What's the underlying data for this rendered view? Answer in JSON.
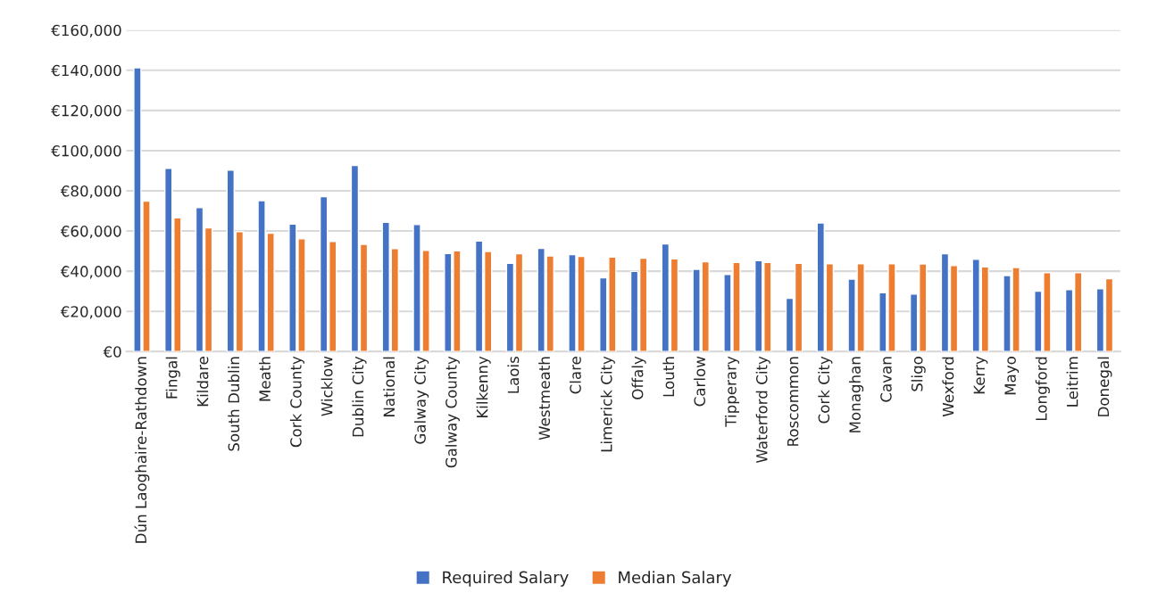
{
  "chart_data": {
    "type": "bar",
    "categories": [
      "Dún Laoghaire-Rathdown",
      "Fingal",
      "Kildare",
      "South Dublin",
      "Meath",
      "Cork County",
      "Wicklow",
      "Dublin City",
      "National",
      "Galway City",
      "Galway County",
      "Kilkenny",
      "Laois",
      "Westmeath",
      "Clare",
      "Limerick City",
      "Offaly",
      "Louth",
      "Carlow",
      "Tipperary",
      "Waterford City",
      "Roscommon",
      "Cork City",
      "Monaghan",
      "Cavan",
      "Sligo",
      "Wexford",
      "Kerry",
      "Mayo",
      "Longford",
      "Leitrim",
      "Donegal"
    ],
    "series": [
      {
        "name": "Required Salary",
        "color": "#4472c4",
        "values": [
          141200,
          91200,
          71600,
          90300,
          75100,
          63400,
          77100,
          92600,
          64300,
          63200,
          48800,
          55000,
          43900,
          51300,
          48300,
          36700,
          39900,
          53600,
          40900,
          38400,
          45300,
          26500,
          64000,
          36100,
          29300,
          28600,
          48700,
          45900,
          37800,
          30100,
          30800,
          31300
        ]
      },
      {
        "name": "Median Salary",
        "color": "#ed7d31",
        "values": [
          74900,
          66500,
          61600,
          59700,
          58900,
          56100,
          54800,
          53400,
          51200,
          50300,
          50100,
          49800,
          48700,
          47600,
          47400,
          47000,
          46500,
          46100,
          44700,
          44400,
          44400,
          43900,
          43700,
          43700,
          43700,
          43600,
          42800,
          42100,
          41800,
          39300,
          39300,
          36300
        ]
      }
    ],
    "ylim": [
      0,
      160000
    ],
    "yticks": [
      {
        "value": 0,
        "label": "€0"
      },
      {
        "value": 20000,
        "label": "€20,000"
      },
      {
        "value": 40000,
        "label": "€40,000"
      },
      {
        "value": 60000,
        "label": "€60,000"
      },
      {
        "value": 80000,
        "label": "€80,000"
      },
      {
        "value": 100000,
        "label": "€100,000"
      },
      {
        "value": 120000,
        "label": "€120,000"
      },
      {
        "value": 140000,
        "label": "€140,000"
      },
      {
        "value": 160000,
        "label": "€160,000"
      }
    ],
    "grid": "y",
    "legend": "bottom"
  }
}
